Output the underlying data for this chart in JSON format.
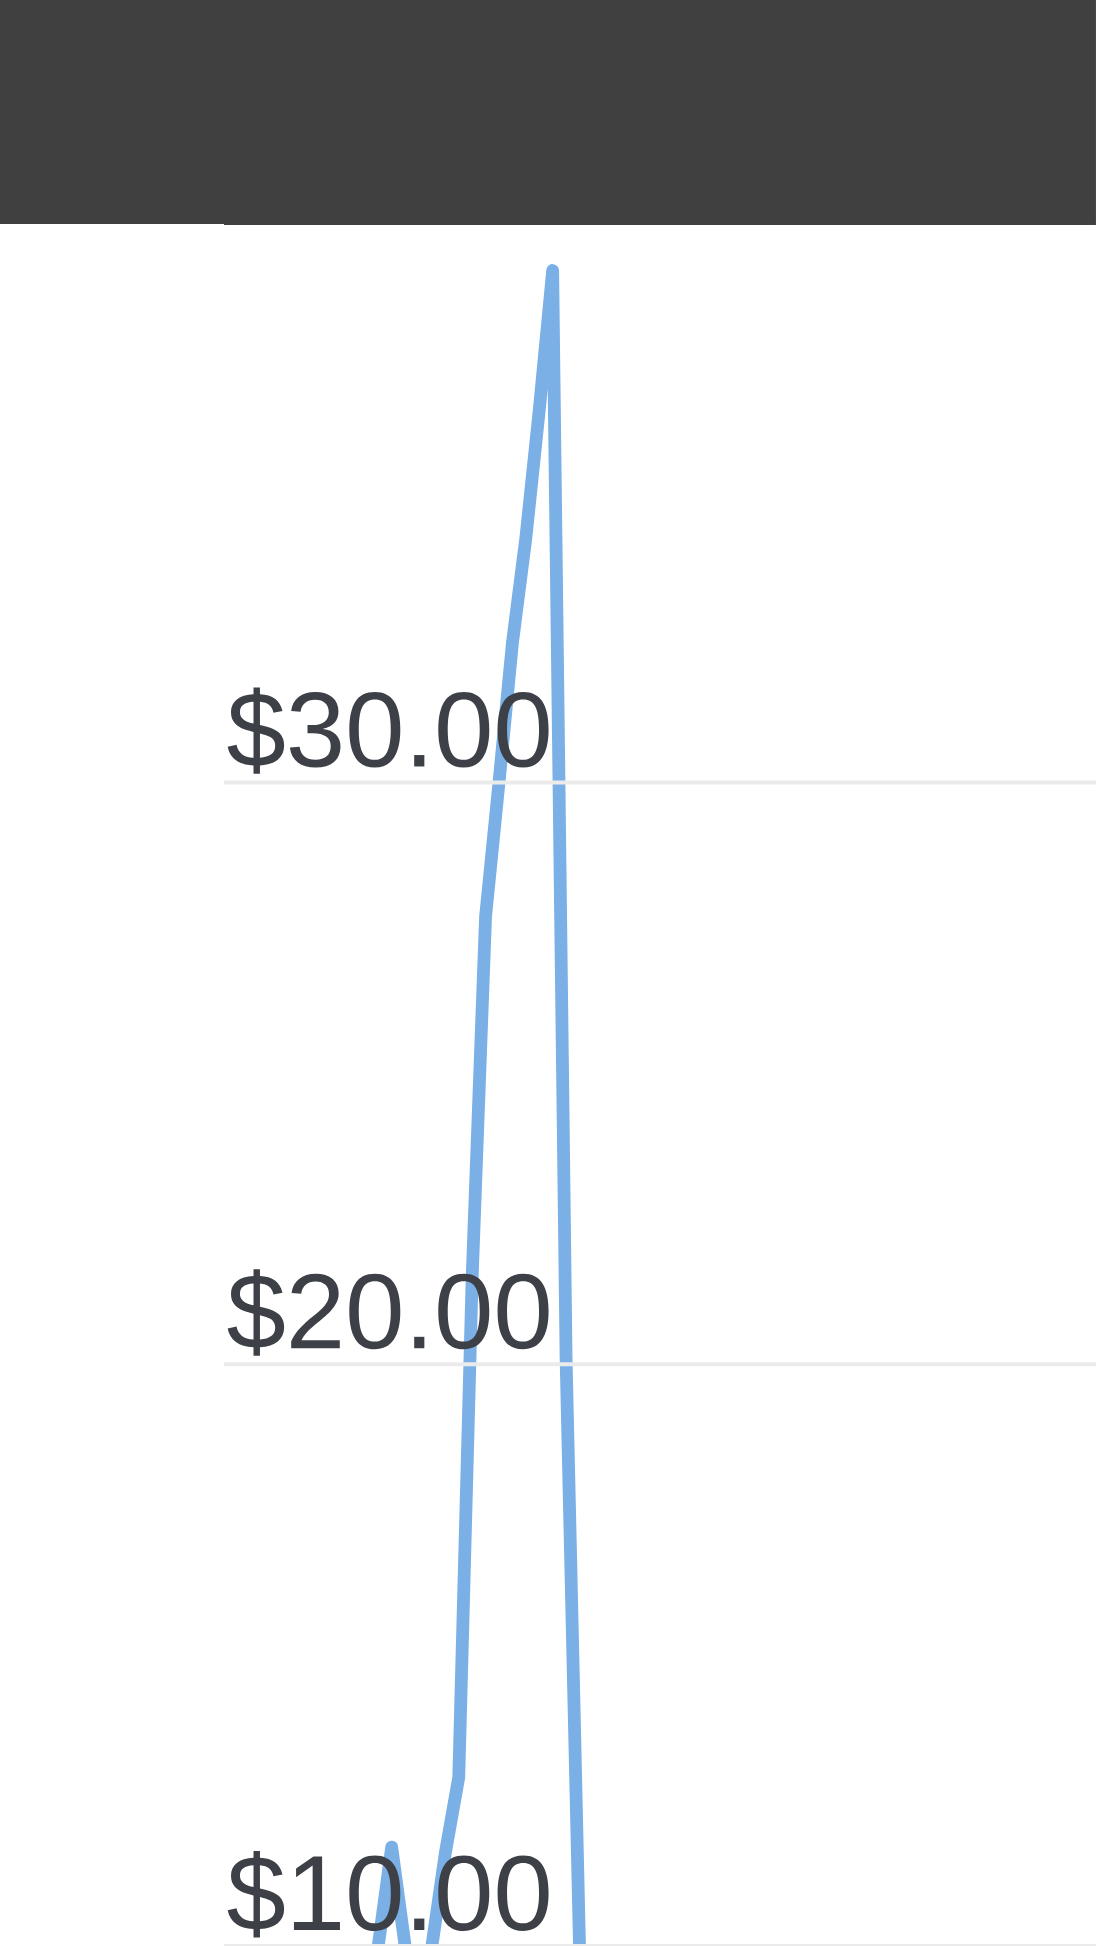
{
  "chart_data": {
    "type": "line",
    "categories": [
      null,
      null,
      null,
      null,
      null,
      null,
      null,
      null,
      null,
      null,
      null,
      null,
      null,
      null,
      null,
      null,
      null,
      null,
      null,
      null,
      null,
      null,
      null,
      null,
      null,
      null,
      null,
      null,
      null,
      null,
      null,
      null,
      null,
      null,
      null,
      null,
      null,
      null,
      null,
      null,
      null,
      null,
      null,
      null,
      null,
      null,
      null,
      null,
      null,
      null,
      null,
      null,
      null,
      null,
      null,
      null,
      null,
      null,
      null,
      null,
      null,
      null,
      null,
      null,
      null
    ],
    "series": [
      {
        "color": "#7ab0e6",
        "values": [
          null,
          null,
          null,
          null,
          null,
          null,
          null,
          null,
          null,
          null,
          null,
          10,
          11.7,
          10,
          null,
          10,
          11.6,
          12.9,
          21.5,
          27.7,
          30.0,
          32.4,
          34.2,
          36.4,
          38.8,
          20.1,
          10,
          null,
          null,
          null,
          null,
          null,
          null,
          null,
          null,
          null,
          null,
          null,
          null,
          null,
          null,
          null,
          null,
          null,
          null,
          null,
          null,
          null,
          null,
          null,
          null,
          null,
          null,
          null,
          null,
          null,
          null,
          null,
          null,
          null,
          null,
          null,
          null,
          null,
          null
        ]
      }
    ],
    "ylim": [
      10,
      39.6
    ],
    "yticks": [
      {
        "value": 10,
        "label": "$10.00"
      },
      {
        "value": 20,
        "label": "$20.00"
      },
      {
        "value": 30,
        "label": "$30.00"
      }
    ],
    "grid": "y",
    "tick_labels": "y"
  }
}
